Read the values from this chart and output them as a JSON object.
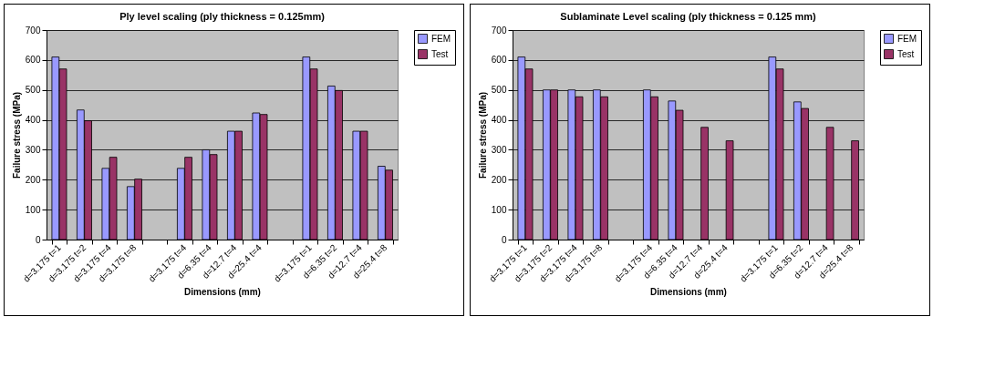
{
  "chart_data": [
    {
      "type": "bar",
      "title": "Ply level scaling (ply thickness = 0.125mm)",
      "xlabel": "Dimensions (mm)",
      "ylabel": "Failure stress (MPa)",
      "categories": [
        "d=3.175 t=1",
        "d=3.175 t=2",
        "d=3.175 t=4",
        "d=3.175 t=8",
        null,
        "d=3.175 t=4",
        "d=6.35 t=4",
        "d=12.7 t=4",
        "d=25.4 t=4",
        null,
        "d=3.175 t=1",
        "d=6.35 t=2",
        "d=12.7 t=4",
        "d=25.4 t=8"
      ],
      "series": [
        {
          "name": "FEM",
          "color": "#9999ff",
          "values": [
            610,
            433,
            238,
            177,
            null,
            238,
            300,
            362,
            423,
            null,
            610,
            513,
            362,
            245
          ]
        },
        {
          "name": "Test",
          "color": "#993366",
          "values": [
            570,
            397,
            275,
            202,
            null,
            275,
            284,
            362,
            418,
            null,
            570,
            498,
            362,
            232
          ]
        }
      ],
      "ylim": [
        0,
        700
      ],
      "yticks": [
        0,
        100,
        200,
        300,
        400,
        500,
        600,
        700
      ],
      "grid": "y",
      "legend": "right"
    },
    {
      "type": "bar",
      "title": "Sublaminate Level scaling (ply thickness = 0.125 mm)",
      "xlabel": "Dimensions (mm)",
      "ylabel": "Failure stress (MPa)",
      "categories": [
        "d=3.175 t=1",
        "d=3.175 t=2",
        "d=3.175 t=4",
        "d=3.175 t=8",
        null,
        "d=3.175 t=4",
        "d=6.35 t=4",
        "d=12.7 t=4",
        "d=25.4 t=4",
        null,
        "d=3.175 t=1",
        "d=6.35 t=2",
        "d=12.7 t=4",
        "d=25.4 t=8"
      ],
      "series": [
        {
          "name": "FEM",
          "color": "#9999ff",
          "values": [
            610,
            500,
            500,
            500,
            null,
            500,
            463,
            null,
            null,
            null,
            610,
            460,
            null,
            null
          ]
        },
        {
          "name": "Test",
          "color": "#993366",
          "values": [
            570,
            500,
            477,
            477,
            null,
            477,
            432,
            375,
            330,
            null,
            570,
            438,
            375,
            330
          ]
        }
      ],
      "ylim": [
        0,
        700
      ],
      "yticks": [
        0,
        100,
        200,
        300,
        400,
        500,
        600,
        700
      ],
      "grid": "y",
      "legend": "right"
    }
  ]
}
